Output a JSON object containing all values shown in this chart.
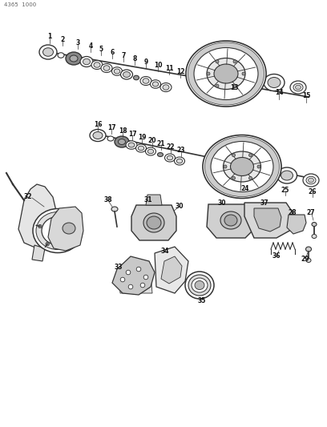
{
  "bg_color": "#ffffff",
  "line_color": "#333333",
  "fig_width": 4.08,
  "fig_height": 5.33,
  "dpi": 100,
  "watermark": "4365  1000",
  "row1_labels": [
    [
      65,
      487,
      "1"
    ],
    [
      78,
      483,
      "2"
    ],
    [
      96,
      479,
      "3"
    ],
    [
      112,
      475,
      "4"
    ],
    [
      126,
      471,
      "5"
    ],
    [
      140,
      467,
      "6"
    ],
    [
      154,
      463,
      "7"
    ],
    [
      168,
      459,
      "8"
    ],
    [
      182,
      455,
      "9"
    ],
    [
      195,
      451,
      "10"
    ],
    [
      209,
      447,
      "11"
    ],
    [
      223,
      443,
      "12"
    ],
    [
      295,
      430,
      "13"
    ],
    [
      343,
      423,
      "14"
    ],
    [
      378,
      419,
      "15"
    ]
  ],
  "row2_labels": [
    [
      128,
      375,
      "16"
    ],
    [
      145,
      371,
      "17"
    ],
    [
      160,
      367,
      "18"
    ],
    [
      172,
      363,
      "17"
    ],
    [
      186,
      359,
      "19"
    ],
    [
      199,
      355,
      "20"
    ],
    [
      213,
      351,
      "21"
    ],
    [
      226,
      347,
      "22"
    ],
    [
      240,
      343,
      "23"
    ],
    [
      305,
      318,
      "24"
    ],
    [
      350,
      310,
      "25"
    ],
    [
      384,
      306,
      "26"
    ]
  ],
  "bottom_labels": [
    [
      38,
      302,
      "32"
    ],
    [
      140,
      285,
      "38"
    ],
    [
      185,
      282,
      "31"
    ],
    [
      226,
      280,
      "30"
    ],
    [
      150,
      198,
      "33"
    ],
    [
      213,
      192,
      "34"
    ],
    [
      248,
      188,
      "35"
    ],
    [
      278,
      280,
      "30"
    ],
    [
      330,
      278,
      "37"
    ],
    [
      363,
      276,
      "28"
    ],
    [
      390,
      274,
      "27"
    ],
    [
      330,
      230,
      "36"
    ],
    [
      375,
      228,
      "29"
    ]
  ]
}
